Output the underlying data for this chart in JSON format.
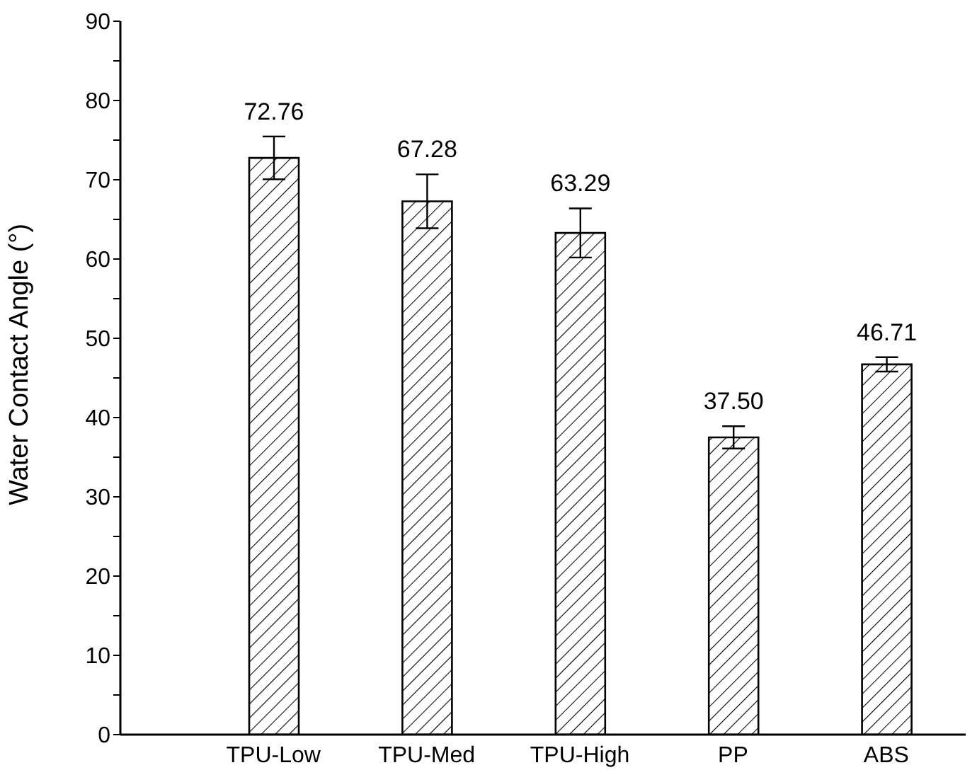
{
  "chart_data": {
    "type": "bar",
    "ylabel": "Water Contact Angle (°)",
    "categories": [
      "TPU-Low",
      "TPU-Med",
      "TPU-High",
      "PP",
      "ABS"
    ],
    "values": [
      72.76,
      67.28,
      63.29,
      37.5,
      46.71
    ],
    "value_labels": [
      "72.76",
      "67.28",
      "63.29",
      "37.50",
      "46.71"
    ],
    "errors": [
      2.7,
      3.4,
      3.1,
      1.4,
      0.9
    ],
    "color": "#000000",
    "ylim": [
      0,
      90
    ],
    "yticks": [
      0,
      {
        "value": 5,
        "label": null
      },
      10,
      {
        "value": 15,
        "label": null
      },
      20,
      {
        "value": 25,
        "label": null
      },
      30,
      {
        "value": 35,
        "label": null
      },
      40,
      {
        "value": 45,
        "label": null
      },
      50,
      {
        "value": 55,
        "label": null
      },
      60,
      {
        "value": 65,
        "label": null
      },
      70,
      {
        "value": 75,
        "label": null
      },
      80,
      {
        "value": 85,
        "label": null
      },
      90
    ],
    "grid": false,
    "legend": false
  }
}
